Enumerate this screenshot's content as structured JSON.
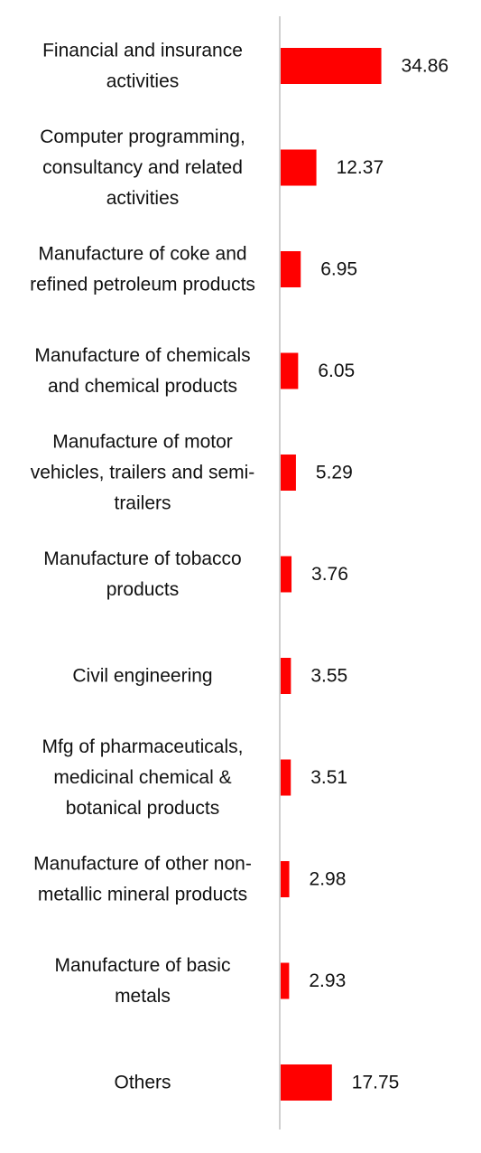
{
  "chart_data": {
    "type": "bar",
    "orientation": "horizontal",
    "categories": [
      [
        "Financial and insurance",
        "activities"
      ],
      [
        "Computer programming,",
        "consultancy and related",
        "activities"
      ],
      [
        "Manufacture of coke and",
        "refined petroleum products"
      ],
      [
        "Manufacture of chemicals",
        "and chemical products"
      ],
      [
        "Manufacture of motor",
        "vehicles, trailers and semi-",
        "trailers"
      ],
      [
        "Manufacture of tobacco",
        "products"
      ],
      [
        "Civil engineering"
      ],
      [
        "Mfg of pharmaceuticals,",
        "medicinal chemical &",
        "botanical products"
      ],
      [
        "Manufacture of other non-",
        "metallic mineral products"
      ],
      [
        "Manufacture of basic",
        "metals"
      ],
      [
        "Others"
      ]
    ],
    "values": [
      34.86,
      12.37,
      6.95,
      6.05,
      5.29,
      3.76,
      3.55,
      3.51,
      2.98,
      2.93,
      17.75
    ],
    "value_labels": [
      "34.86",
      "12.37",
      "6.95",
      "6.05",
      "5.29",
      "3.76",
      "3.55",
      "3.51",
      "2.98",
      "2.93",
      "17.75"
    ],
    "bar_color": "#ff0000",
    "axis_color": "#d0d0d0",
    "title": "",
    "xlabel": "",
    "ylabel": "",
    "grid": false,
    "legend": "none"
  }
}
